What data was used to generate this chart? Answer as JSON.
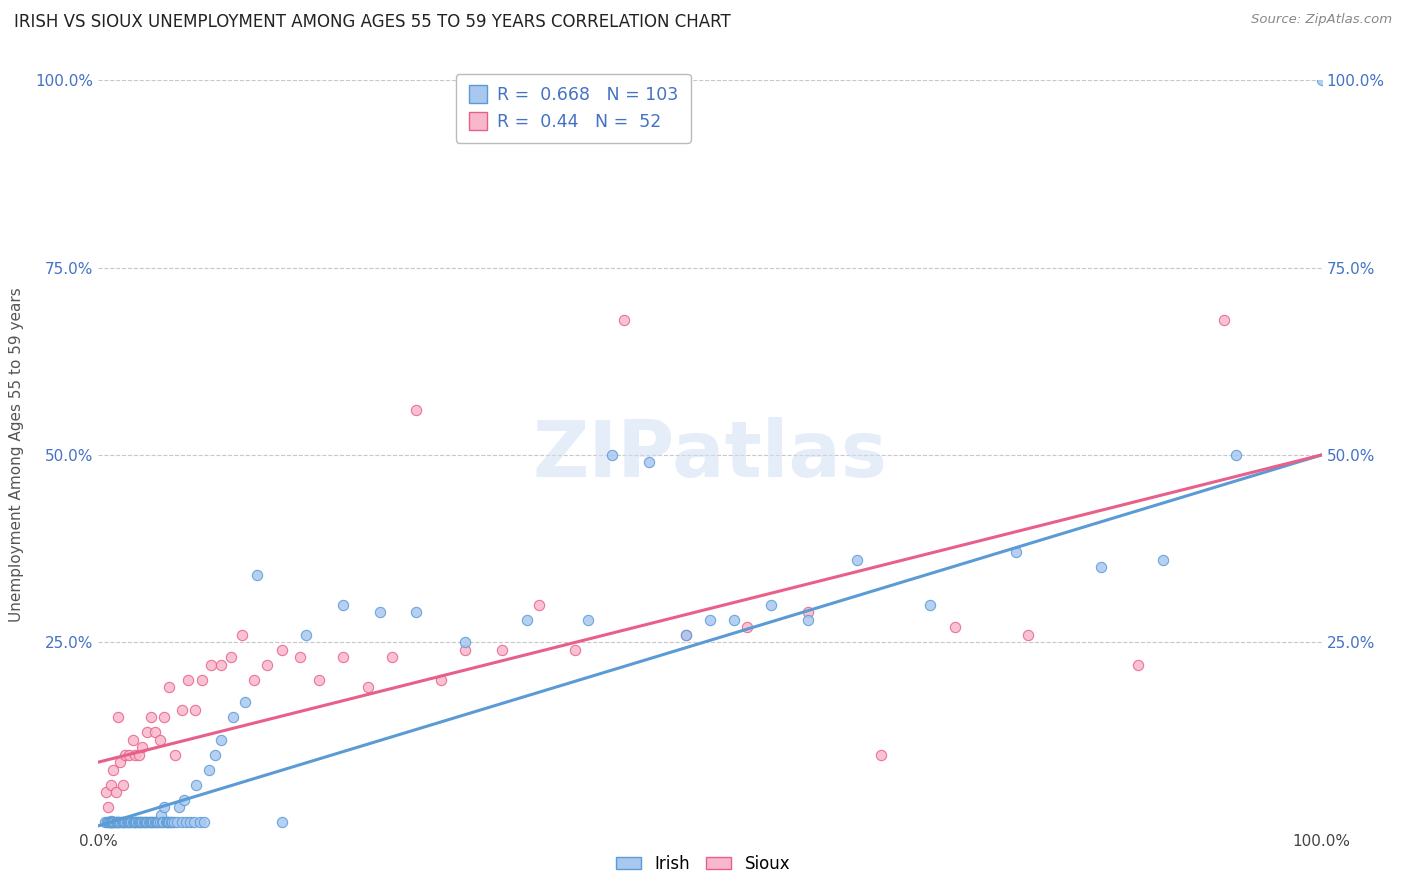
{
  "title": "IRISH VS SIOUX UNEMPLOYMENT AMONG AGES 55 TO 59 YEARS CORRELATION CHART",
  "source": "Source: ZipAtlas.com",
  "ylabel": "Unemployment Among Ages 55 to 59 years",
  "xlim": [
    0.0,
    1.0
  ],
  "ylim": [
    0.0,
    1.0
  ],
  "irish_color": "#a8c8f0",
  "sioux_color": "#f8b8cc",
  "irish_edge_color": "#5b9bd5",
  "sioux_edge_color": "#e8608a",
  "irish_line_color": "#5b9bd5",
  "sioux_line_color": "#e8608a",
  "irish_R": 0.668,
  "irish_N": 103,
  "sioux_R": 0.44,
  "sioux_N": 52,
  "watermark": "ZIPatlas",
  "background_color": "#ffffff",
  "grid_color": "#c8c8c8",
  "irish_trend_x": [
    0.0,
    1.0
  ],
  "irish_trend_y": [
    0.005,
    0.5
  ],
  "sioux_trend_x": [
    0.0,
    1.0
  ],
  "sioux_trend_y": [
    0.09,
    0.5
  ],
  "irish_scatter_x": [
    0.005,
    0.007,
    0.008,
    0.009,
    0.01,
    0.01,
    0.01,
    0.01,
    0.01,
    0.01,
    0.011,
    0.012,
    0.013,
    0.013,
    0.014,
    0.015,
    0.015,
    0.016,
    0.017,
    0.018,
    0.019,
    0.02,
    0.02,
    0.021,
    0.022,
    0.023,
    0.024,
    0.025,
    0.026,
    0.027,
    0.028,
    0.029,
    0.03,
    0.03,
    0.031,
    0.032,
    0.033,
    0.034,
    0.035,
    0.036,
    0.037,
    0.038,
    0.039,
    0.04,
    0.041,
    0.042,
    0.043,
    0.044,
    0.045,
    0.046,
    0.047,
    0.048,
    0.049,
    0.05,
    0.051,
    0.052,
    0.053,
    0.054,
    0.055,
    0.056,
    0.057,
    0.058,
    0.059,
    0.06,
    0.062,
    0.064,
    0.066,
    0.068,
    0.07,
    0.072,
    0.075,
    0.078,
    0.08,
    0.083,
    0.086,
    0.09,
    0.095,
    0.1,
    0.11,
    0.12,
    0.13,
    0.15,
    0.17,
    0.2,
    0.23,
    0.26,
    0.3,
    0.35,
    0.4,
    0.42,
    0.45,
    0.48,
    0.5,
    0.52,
    0.55,
    0.58,
    0.62,
    0.68,
    0.75,
    0.82,
    0.87,
    0.93,
    1.0
  ],
  "irish_scatter_y": [
    0.01,
    0.01,
    0.01,
    0.01,
    0.01,
    0.012,
    0.01,
    0.01,
    0.01,
    0.01,
    0.01,
    0.01,
    0.01,
    0.01,
    0.01,
    0.01,
    0.01,
    0.01,
    0.01,
    0.01,
    0.01,
    0.01,
    0.01,
    0.01,
    0.01,
    0.01,
    0.01,
    0.01,
    0.01,
    0.01,
    0.01,
    0.01,
    0.01,
    0.01,
    0.01,
    0.01,
    0.01,
    0.01,
    0.01,
    0.01,
    0.01,
    0.01,
    0.01,
    0.01,
    0.01,
    0.01,
    0.01,
    0.01,
    0.01,
    0.01,
    0.01,
    0.01,
    0.01,
    0.01,
    0.02,
    0.01,
    0.01,
    0.03,
    0.01,
    0.01,
    0.01,
    0.01,
    0.01,
    0.01,
    0.01,
    0.01,
    0.03,
    0.01,
    0.04,
    0.01,
    0.01,
    0.01,
    0.06,
    0.01,
    0.01,
    0.08,
    0.1,
    0.12,
    0.15,
    0.17,
    0.34,
    0.01,
    0.26,
    0.3,
    0.29,
    0.29,
    0.25,
    0.28,
    0.28,
    0.5,
    0.49,
    0.26,
    0.28,
    0.28,
    0.3,
    0.28,
    0.36,
    0.3,
    0.37,
    0.35,
    0.36,
    0.5,
    1.0
  ],
  "sioux_scatter_x": [
    0.006,
    0.008,
    0.01,
    0.012,
    0.014,
    0.016,
    0.018,
    0.02,
    0.022,
    0.025,
    0.028,
    0.03,
    0.033,
    0.036,
    0.04,
    0.043,
    0.046,
    0.05,
    0.054,
    0.058,
    0.063,
    0.068,
    0.073,
    0.079,
    0.085,
    0.092,
    0.1,
    0.108,
    0.117,
    0.127,
    0.138,
    0.15,
    0.165,
    0.18,
    0.2,
    0.22,
    0.24,
    0.26,
    0.28,
    0.3,
    0.33,
    0.36,
    0.39,
    0.43,
    0.48,
    0.53,
    0.58,
    0.64,
    0.7,
    0.76,
    0.85,
    0.92
  ],
  "sioux_scatter_y": [
    0.05,
    0.03,
    0.06,
    0.08,
    0.05,
    0.15,
    0.09,
    0.06,
    0.1,
    0.1,
    0.12,
    0.1,
    0.1,
    0.11,
    0.13,
    0.15,
    0.13,
    0.12,
    0.15,
    0.19,
    0.1,
    0.16,
    0.2,
    0.16,
    0.2,
    0.22,
    0.22,
    0.23,
    0.26,
    0.2,
    0.22,
    0.24,
    0.23,
    0.2,
    0.23,
    0.19,
    0.23,
    0.56,
    0.2,
    0.24,
    0.24,
    0.3,
    0.24,
    0.68,
    0.26,
    0.27,
    0.29,
    0.1,
    0.27,
    0.26,
    0.22,
    0.68
  ]
}
